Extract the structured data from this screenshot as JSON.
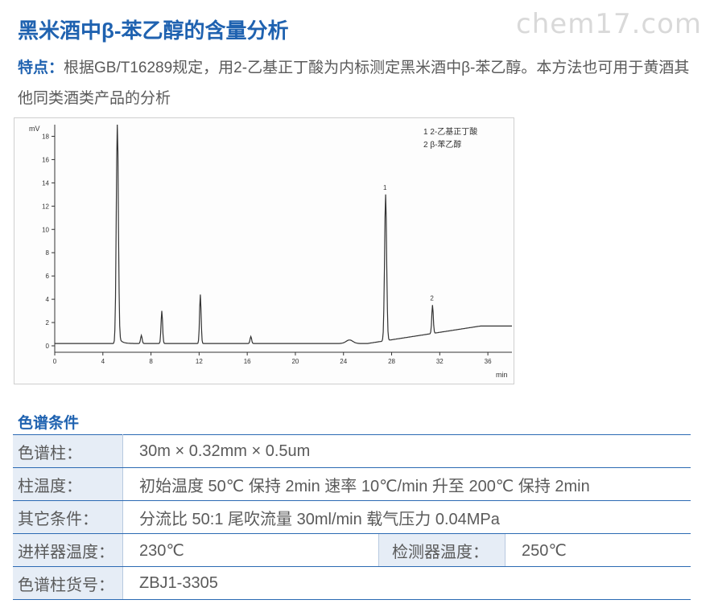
{
  "watermark": "chem17.com",
  "title": "黑米酒中β-苯乙醇的含量分析",
  "features": {
    "label": "特点：",
    "text": "根据GB/T16289规定，用2-乙基正丁酸为内标测定黑米酒中β-苯乙醇。本方法也可用于黄酒其他同类酒类产品的分析"
  },
  "chromatogram": {
    "y_unit": "mV",
    "x_unit": "min",
    "x_ticks": [
      "0",
      "4",
      "8",
      "12",
      "16",
      "20",
      "24",
      "28",
      "32",
      "36"
    ],
    "y_ticks": [
      "0",
      "2",
      "4",
      "6",
      "8",
      "10",
      "12",
      "14",
      "16",
      "18"
    ],
    "legend": [
      "1  2-乙基正丁酸",
      "2  β-苯乙醇"
    ],
    "peak_labels": [
      "1",
      "2"
    ]
  },
  "chart_data": {
    "type": "line",
    "xlabel": "min",
    "ylabel": "mV",
    "xlim": [
      0,
      38
    ],
    "ylim": [
      0,
      19
    ],
    "peaks": [
      {
        "x": 5.2,
        "y": 19.0
      },
      {
        "x": 7.2,
        "y": 0.9
      },
      {
        "x": 8.9,
        "y": 3.0
      },
      {
        "x": 12.1,
        "y": 4.4
      },
      {
        "x": 16.3,
        "y": 0.8
      },
      {
        "x": 27.5,
        "y": 13.0,
        "label": "1"
      },
      {
        "x": 31.4,
        "y": 3.5,
        "label": "2"
      }
    ]
  },
  "section_title": "色谱条件",
  "params": {
    "column": {
      "label": "色谱柱：",
      "value": "30m × 0.32mm × 0.5um"
    },
    "temp": {
      "label": "柱温度：",
      "value": "初始温度 50℃ 保持 2min  速率 10℃/min 升至 200℃ 保持 2min"
    },
    "other": {
      "label": "其它条件：",
      "value": "分流比 50:1  尾吹流量 30ml/min  载气压力 0.04MPa"
    },
    "injector": {
      "label": "进样器温度：",
      "value": "230℃"
    },
    "detector": {
      "label": "检测器温度：",
      "value": "250℃"
    },
    "part_no": {
      "label": "色谱柱货号：",
      "value": "ZBJ1-3305"
    }
  }
}
